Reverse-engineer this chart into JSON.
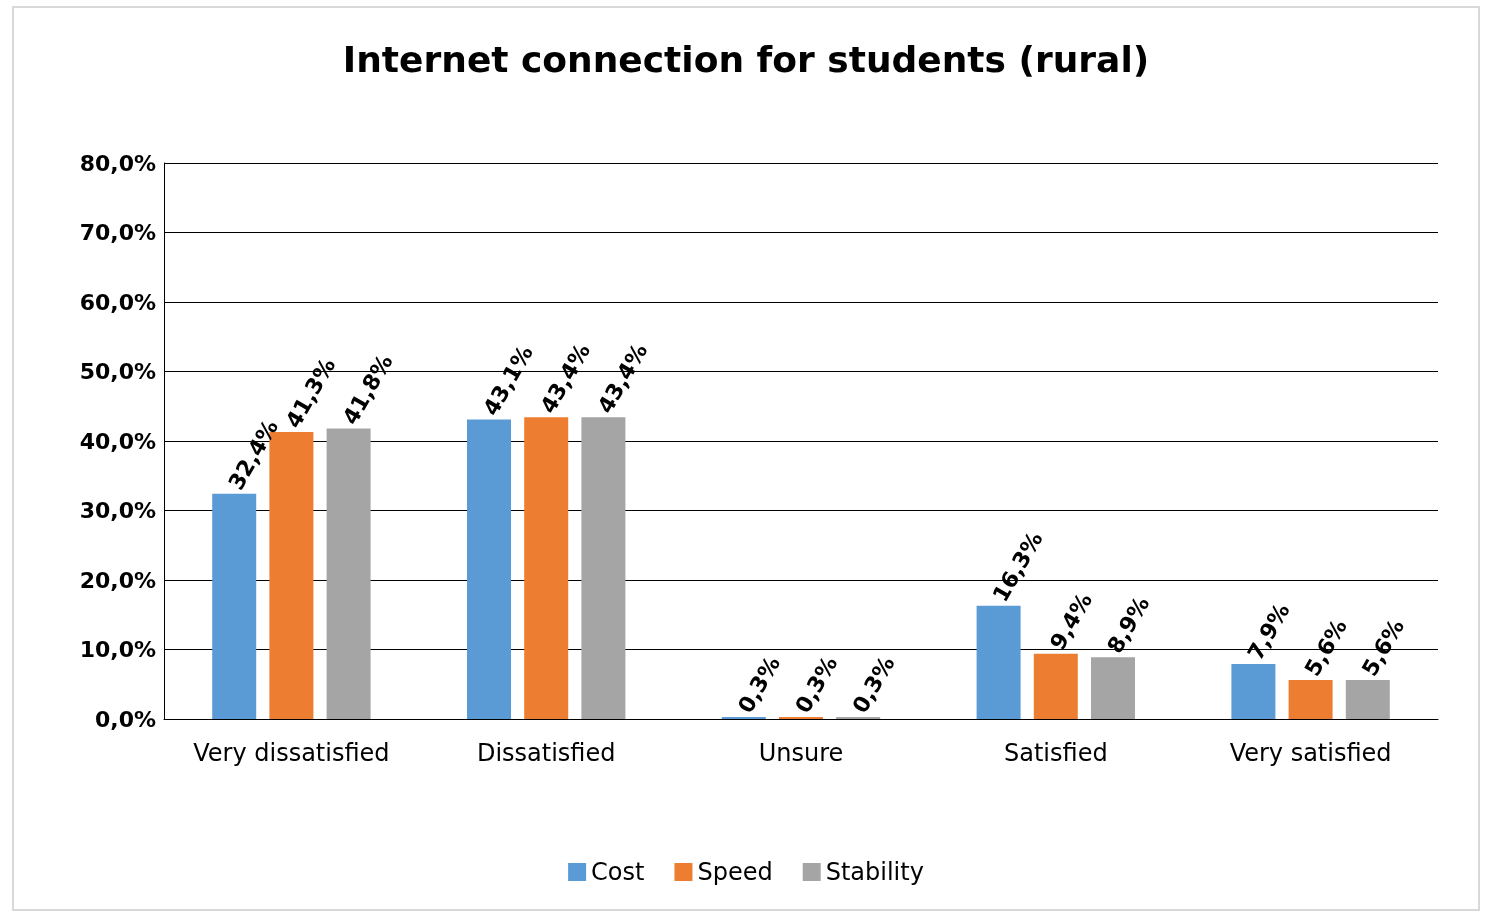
{
  "chart_data": {
    "type": "bar",
    "title": "Internet connection for students (rural)",
    "categories": [
      "Very dissatisfied",
      "Dissatisfied",
      "Unsure",
      "Satisfied",
      "Very satisfied"
    ],
    "series": [
      {
        "name": "Cost",
        "color": "#5b9bd5",
        "values": [
          32.4,
          43.1,
          0.3,
          16.3,
          7.9
        ],
        "value_labels": [
          "32,4%",
          "43,1%",
          "0,3%",
          "16,3%",
          "7,9%"
        ]
      },
      {
        "name": "Speed",
        "color": "#ed7d31",
        "values": [
          41.3,
          43.4,
          0.3,
          9.4,
          5.6
        ],
        "value_labels": [
          "41,3%",
          "43,4%",
          "0,3%",
          "9,4%",
          "5,6%"
        ]
      },
      {
        "name": "Stability",
        "color": "#a5a5a5",
        "values": [
          41.8,
          43.4,
          0.3,
          8.9,
          5.6
        ],
        "value_labels": [
          "41,8%",
          "43,4%",
          "0,3%",
          "8,9%",
          "5,6%"
        ]
      }
    ],
    "ylim": [
      0,
      80
    ],
    "yticks": [
      {
        "value": 0,
        "label": "0,0%"
      },
      {
        "value": 10,
        "label": "10,0%"
      },
      {
        "value": 20,
        "label": "20,0%"
      },
      {
        "value": 30,
        "label": "30,0%"
      },
      {
        "value": 40,
        "label": "40,0%"
      },
      {
        "value": 50,
        "label": "50,0%"
      },
      {
        "value": 60,
        "label": "60,0%"
      },
      {
        "value": 70,
        "label": "70,0%"
      },
      {
        "value": 80,
        "label": "80,0%"
      }
    ],
    "grid": "y",
    "legend": "bottom"
  }
}
